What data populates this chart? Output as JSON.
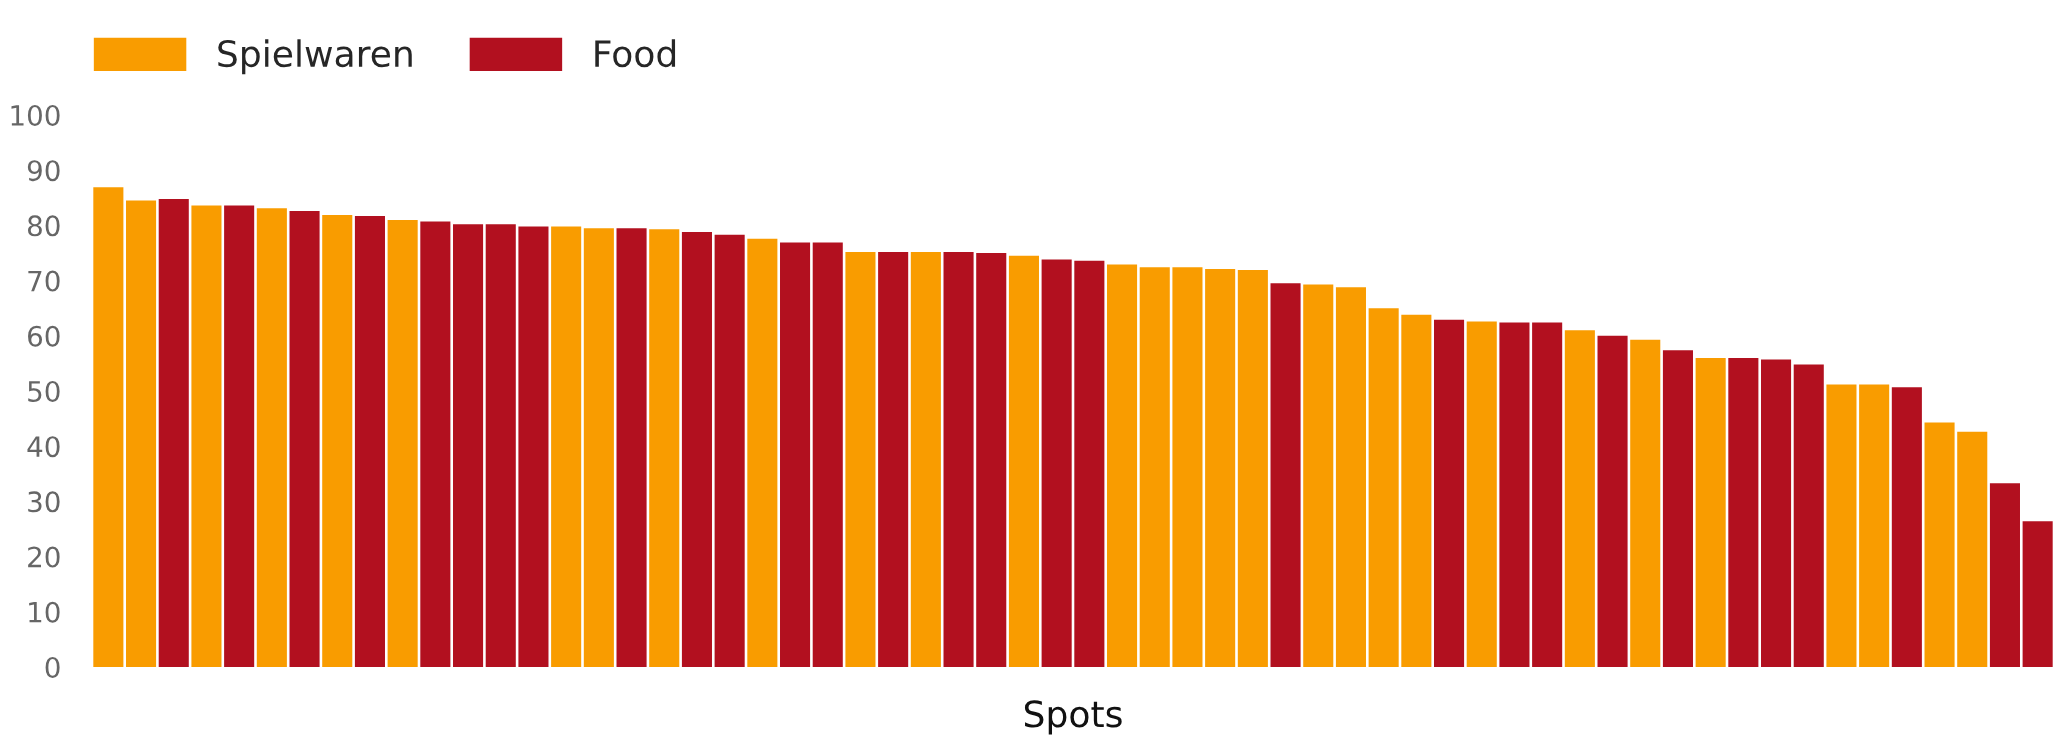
{
  "chart_data": {
    "type": "bar",
    "xlabel": "Spots",
    "categories": [
      null,
      null,
      null,
      null,
      null,
      null,
      null,
      null,
      null,
      null,
      null,
      null,
      null,
      null,
      null,
      null,
      null,
      null,
      null,
      null,
      null,
      null,
      null,
      null,
      null,
      null,
      null,
      null,
      null,
      null,
      null,
      null,
      null,
      null,
      null,
      null,
      null,
      null,
      null,
      null,
      null,
      null,
      null,
      null,
      null,
      null,
      null,
      null,
      null,
      null,
      null,
      null,
      null,
      null,
      null,
      null,
      null,
      null,
      null,
      null
    ],
    "series": [
      {
        "name": "Spielwaren",
        "color": "#f99c00",
        "values": [
          86.9,
          84.5,
          null,
          83.6,
          null,
          83.1,
          null,
          81.9,
          null,
          81.0,
          null,
          null,
          null,
          null,
          79.8,
          79.5,
          null,
          79.3,
          null,
          null,
          77.6,
          null,
          null,
          75.2,
          null,
          75.2,
          null,
          null,
          74.5,
          null,
          null,
          72.9,
          72.4,
          72.4,
          72.1,
          71.9,
          null,
          69.3,
          68.8,
          65.0,
          63.8,
          null,
          62.6,
          null,
          null,
          61.0,
          null,
          59.3,
          null,
          56.0,
          null,
          null,
          null,
          51.2,
          51.2,
          null,
          44.3,
          42.6,
          null,
          null
        ]
      },
      {
        "name": "Food",
        "color": "#b2101f",
        "values": [
          null,
          null,
          84.8,
          null,
          83.6,
          null,
          82.6,
          null,
          81.7,
          null,
          80.7,
          80.2,
          80.2,
          79.8,
          null,
          null,
          79.5,
          null,
          78.8,
          78.3,
          null,
          76.9,
          76.9,
          null,
          75.2,
          null,
          75.2,
          75.0,
          null,
          73.8,
          73.6,
          null,
          null,
          null,
          null,
          null,
          69.5,
          null,
          null,
          null,
          null,
          62.9,
          null,
          62.4,
          62.4,
          null,
          60.0,
          null,
          57.4,
          null,
          56.0,
          55.7,
          54.8,
          null,
          null,
          50.7,
          null,
          null,
          33.3,
          26.4
        ]
      }
    ],
    "ylim": [
      0,
      100
    ],
    "yticks": [
      0,
      10,
      20,
      30,
      40,
      50,
      60,
      70,
      80,
      90,
      100
    ],
    "grid": false,
    "legend": "top left",
    "stacked": true
  }
}
